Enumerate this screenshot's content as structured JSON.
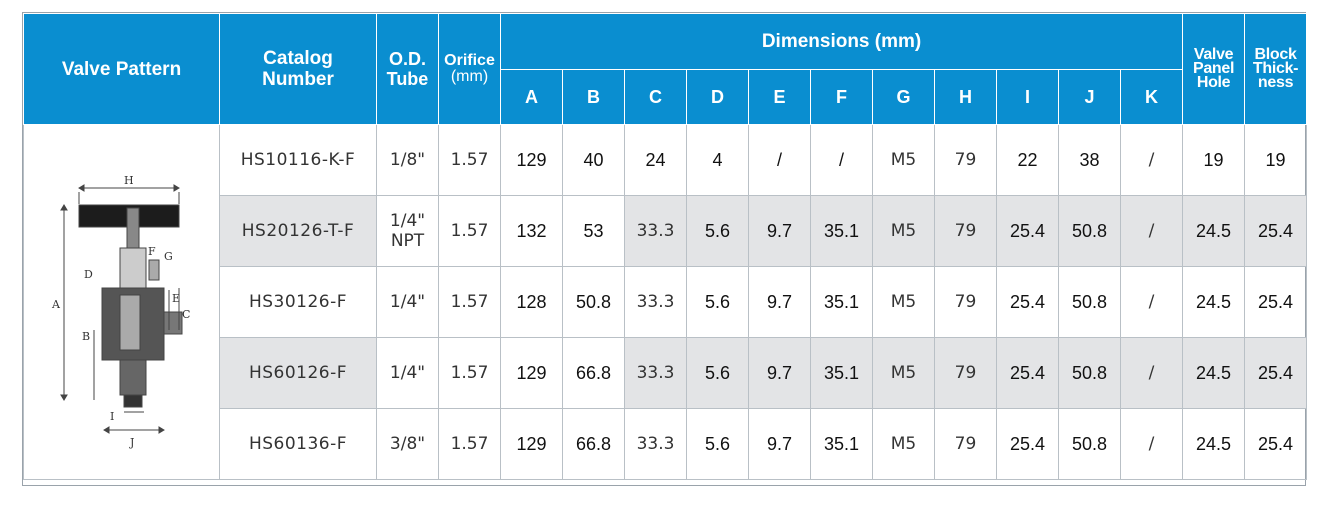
{
  "header": {
    "valve_pattern": "Valve Pattern",
    "catalog_number": [
      "Catalog",
      "Number"
    ],
    "od_tube": [
      "O.D.",
      "Tube"
    ],
    "orifice": [
      "Orifice",
      "(mm)"
    ],
    "dimensions": "Dimensions (mm)",
    "dim_letters": [
      "A",
      "B",
      "C",
      "D",
      "E",
      "F",
      "G",
      "H",
      "I",
      "J",
      "K"
    ],
    "valve_panel_hole": [
      "Valve",
      "Panel",
      "Hole"
    ],
    "block_thickness": [
      "Block",
      "Thick-",
      "ness"
    ]
  },
  "diagram_labels": {
    "H": "H",
    "F": "F",
    "G": "G",
    "D": "D",
    "A": "A",
    "B": "B",
    "E": "E",
    "C": "C",
    "I": "I",
    "J": "J"
  },
  "rows": [
    {
      "catalog": "HS10116-K-F",
      "od": [
        "1/8\""
      ],
      "orifice": "1.57",
      "A": "129",
      "B": "40",
      "C": "24",
      "D": "4",
      "E": "/",
      "F": "/",
      "G": "M5",
      "H": "79",
      "I": "22",
      "J": "38",
      "K": "/",
      "panel_hole": "19",
      "block": "19"
    },
    {
      "catalog": "HS20126-T-F",
      "od": [
        "1/4\"",
        "NPT"
      ],
      "orifice": "1.57",
      "A": "132",
      "B": "53",
      "C": "33.3",
      "D": "5.6",
      "E": "9.7",
      "F": "35.1",
      "G": "M5",
      "H": "79",
      "I": "25.4",
      "J": "50.8",
      "K": "/",
      "panel_hole": "24.5",
      "block": "25.4"
    },
    {
      "catalog": "HS30126-F",
      "od": [
        "1/4\""
      ],
      "orifice": "1.57",
      "A": "128",
      "B": "50.8",
      "C": "33.3",
      "D": "5.6",
      "E": "9.7",
      "F": "35.1",
      "G": "M5",
      "H": "79",
      "I": "25.4",
      "J": "50.8",
      "K": "/",
      "panel_hole": "24.5",
      "block": "25.4"
    },
    {
      "catalog": "HS60126-F",
      "od": [
        "1/4\""
      ],
      "orifice": "1.57",
      "A": "129",
      "B": "66.8",
      "C": "33.3",
      "D": "5.6",
      "E": "9.7",
      "F": "35.1",
      "G": "M5",
      "H": "79",
      "I": "25.4",
      "J": "50.8",
      "K": "/",
      "panel_hole": "24.5",
      "block": "25.4"
    },
    {
      "catalog": "HS60136-F",
      "od": [
        "3/8\""
      ],
      "orifice": "1.57",
      "A": "129",
      "B": "66.8",
      "C": "33.3",
      "D": "5.6",
      "E": "9.7",
      "F": "35.1",
      "G": "M5",
      "H": "79",
      "I": "25.4",
      "J": "50.8",
      "K": "/",
      "panel_hole": "24.5",
      "block": "25.4"
    }
  ],
  "colors": {
    "header_blue": "#0a8ed0",
    "row_shade": "#e3e4e6"
  }
}
